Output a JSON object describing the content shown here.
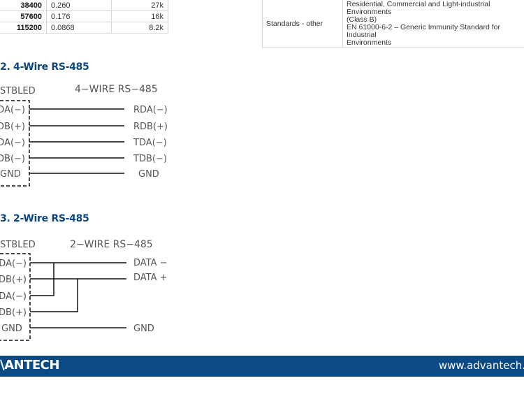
{
  "baud_table": {
    "rows": [
      [
        "38400",
        "0.260",
        "27k"
      ],
      [
        "57600",
        "0.176",
        "16k"
      ],
      [
        "115200",
        "0.0868",
        "8.2k"
      ]
    ]
  },
  "standards_table": {
    "label": "Standards - other",
    "lines": [
      "Residential, Commercial and Light-industrial Environments",
      "(Class B)",
      "EN 61000-6-2 – Generic Immunity Standard for Industrial",
      "Environments"
    ]
  },
  "figure2": {
    "title": "2.  4-Wire RS-485",
    "left_header": "STBLED",
    "right_header": "4−WIRE RS−485",
    "left_labels": [
      "DA(−)",
      "DB(+)",
      "DA(−)",
      "DB(−)",
      "GND"
    ],
    "right_labels": [
      "RDA(−)",
      "RDB(+)",
      "TDA(−)",
      "TDB(−)",
      "GND"
    ]
  },
  "figure3": {
    "title": "3.  2-Wire RS-485",
    "left_header": "STBLED",
    "right_header": "2−WIRE RS−485",
    "left_labels": [
      "TDA(−)",
      "TDB(+)",
      "RDA(−)",
      "RDB(+)",
      "GND"
    ],
    "right_labels": [
      "DATA −",
      "DATA +",
      "GND"
    ]
  },
  "footer": {
    "logo": "\\ANTECH",
    "url": "www.advantech.",
    "color": "#0b4a85"
  }
}
